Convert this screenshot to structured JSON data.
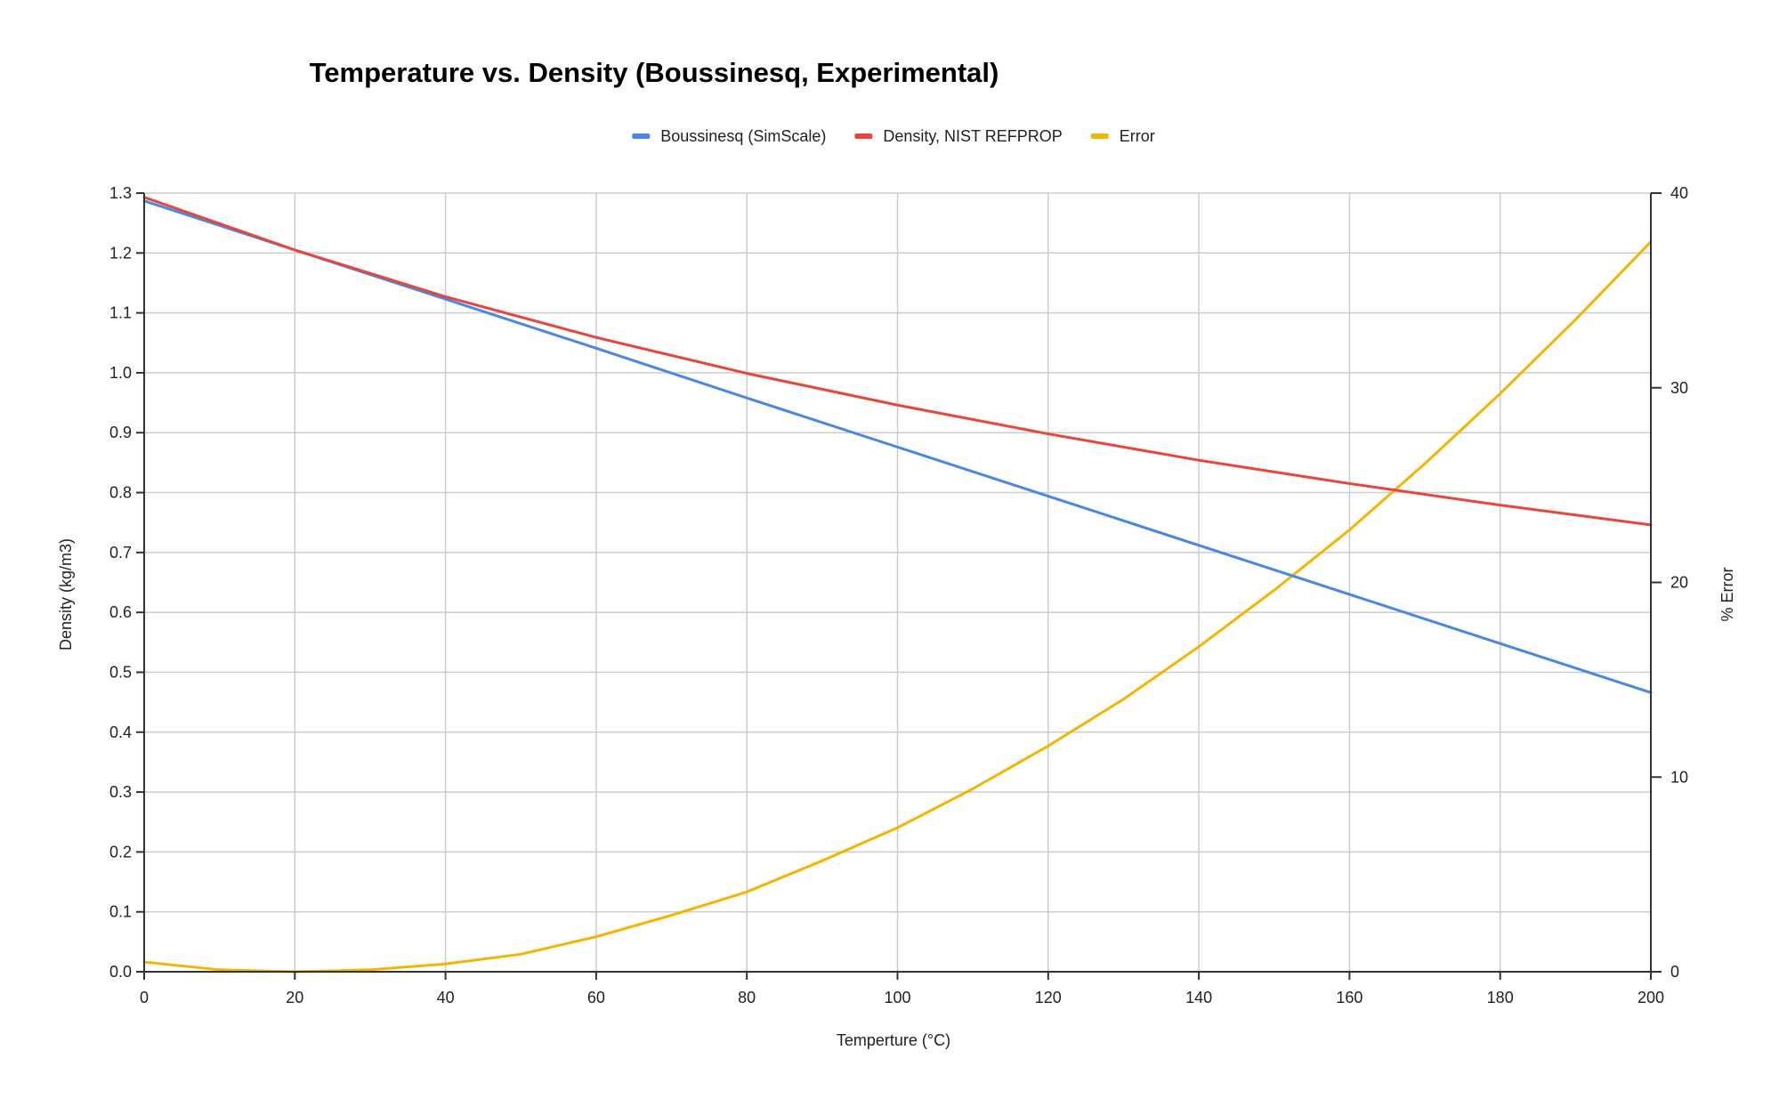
{
  "chart_data": {
    "type": "line",
    "title": "Temperature vs. Density (Boussinesq, Experimental)",
    "xlabel": "Temperture (°C)",
    "ylabel": "Density (kg/m3)",
    "y2label": "% Error",
    "xlim": [
      0,
      200
    ],
    "ylim": [
      0,
      1.3
    ],
    "y2lim": [
      0,
      40
    ],
    "x_ticks": [
      "0",
      "20",
      "40",
      "60",
      "80",
      "100",
      "120",
      "140",
      "160",
      "180",
      "200"
    ],
    "y_ticks": [
      "0.0",
      "0.1",
      "0.2",
      "0.3",
      "0.4",
      "0.5",
      "0.6",
      "0.7",
      "0.8",
      "0.9",
      "1.0",
      "1.1",
      "1.2",
      "1.3"
    ],
    "y2_ticks": [
      "0",
      "10",
      "20",
      "30",
      "40"
    ],
    "grid": true,
    "legend_position": "top",
    "series": [
      {
        "name": "Boussinesq (SimScale)",
        "color": "#4a86e8",
        "axis": "left",
        "x": [
          0,
          20,
          40,
          60,
          80,
          100,
          120,
          140,
          160,
          180,
          200
        ],
        "y": [
          1.287,
          1.205,
          1.123,
          1.041,
          0.958,
          0.876,
          0.794,
          0.712,
          0.63,
          0.548,
          0.466
        ]
      },
      {
        "name": "Density, NIST REFPROP",
        "color": "#e8463a",
        "axis": "left",
        "x": [
          0,
          20,
          40,
          60,
          80,
          100,
          120,
          140,
          160,
          180,
          200
        ],
        "y": [
          1.293,
          1.205,
          1.127,
          1.059,
          0.999,
          0.946,
          0.898,
          0.854,
          0.815,
          0.779,
          0.746
        ]
      },
      {
        "name": "Error",
        "color": "#f4b400",
        "axis": "right",
        "x": [
          0,
          10,
          20,
          30,
          40,
          50,
          60,
          70,
          80,
          90,
          100,
          110,
          120,
          130,
          140,
          150,
          160,
          170,
          180,
          190,
          200
        ],
        "y": [
          0.5,
          0.1,
          0.0,
          0.1,
          0.4,
          0.9,
          1.8,
          2.9,
          4.1,
          5.7,
          7.4,
          9.4,
          11.6,
          14.0,
          16.7,
          19.6,
          22.7,
          26.1,
          29.7,
          33.5,
          37.5
        ]
      }
    ]
  }
}
